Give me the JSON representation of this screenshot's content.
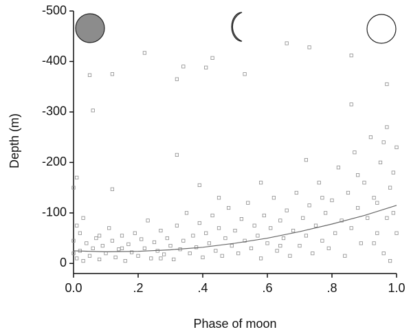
{
  "chart_data": {
    "type": "scatter",
    "x_label": "Phase of moon",
    "y_label": "Depth (m)",
    "xlim": [
      0,
      1
    ],
    "xticks": [
      {
        "value": 0,
        "label": "0.0"
      },
      {
        "value": 0.2,
        "label": ".2"
      },
      {
        "value": 0.4,
        "label": ".4"
      },
      {
        "value": 0.6,
        "label": ".6"
      },
      {
        "value": 0.8,
        "label": ".8"
      },
      {
        "value": 1,
        "label": "1.0"
      }
    ],
    "ylim": [
      20,
      -500
    ],
    "yticks": [
      0,
      -100,
      -200,
      -300,
      -400,
      -500
    ],
    "color": "#8a8a8a",
    "x": [
      0.05,
      0.06,
      0.12,
      0.22,
      0.32,
      0.34,
      0.32,
      0.41,
      0.43,
      0.53,
      0.12,
      0.66,
      0.73,
      0.86,
      0.86,
      0.97,
      0.72,
      0.39,
      0.01,
      0.0,
      0.01,
      0.02,
      0.03,
      0.04,
      0.02,
      0.05,
      0.06,
      0.07,
      0.08,
      0.09,
      0.1,
      0.11,
      0.12,
      0.13,
      0.14,
      0.15,
      0.16,
      0.17,
      0.18,
      0.19,
      0.2,
      0.21,
      0.22,
      0.23,
      0.24,
      0.25,
      0.26,
      0.27,
      0.28,
      0.29,
      0.3,
      0.31,
      0.32,
      0.33,
      0.34,
      0.35,
      0.36,
      0.37,
      0.38,
      0.39,
      0.4,
      0.41,
      0.42,
      0.43,
      0.44,
      0.45,
      0.46,
      0.47,
      0.48,
      0.49,
      0.5,
      0.51,
      0.52,
      0.53,
      0.54,
      0.55,
      0.56,
      0.57,
      0.58,
      0.59,
      0.6,
      0.61,
      0.62,
      0.63,
      0.64,
      0.65,
      0.66,
      0.67,
      0.68,
      0.69,
      0.7,
      0.71,
      0.72,
      0.73,
      0.74,
      0.75,
      0.76,
      0.77,
      0.78,
      0.79,
      0.8,
      0.81,
      0.82,
      0.83,
      0.84,
      0.85,
      0.86,
      0.87,
      0.88,
      0.89,
      0.9,
      0.91,
      0.92,
      0.93,
      0.94,
      0.95,
      0.96,
      0.97,
      0.98,
      0.99,
      1.0,
      1.0,
      0.99,
      0.98,
      0.96,
      0.94,
      0.03,
      0.0,
      0.0,
      0.01,
      0.08,
      0.15,
      0.27,
      0.45,
      0.58,
      0.64,
      0.77,
      0.88,
      0.93,
      0.97
    ],
    "values": [
      -373,
      -303,
      -375,
      -417,
      -365,
      -390,
      -215,
      -388,
      -407,
      -375,
      -147,
      -436,
      -428,
      -412,
      -315,
      -355,
      -205,
      -155,
      -170,
      -150,
      -10,
      -25,
      -5,
      -40,
      -60,
      -15,
      -30,
      -50,
      -8,
      -35,
      -20,
      -70,
      -45,
      -12,
      -28,
      -55,
      -5,
      -38,
      -22,
      -60,
      -15,
      -48,
      -30,
      -85,
      -10,
      -42,
      -25,
      -65,
      -18,
      -50,
      -35,
      -8,
      -75,
      -28,
      -45,
      -100,
      -20,
      -55,
      -32,
      -80,
      -12,
      -60,
      -40,
      -95,
      -25,
      -70,
      -15,
      -50,
      -110,
      -35,
      -65,
      -20,
      -88,
      -45,
      -120,
      -30,
      -75,
      -55,
      -10,
      -95,
      -40,
      -70,
      -130,
      -25,
      -85,
      -50,
      -105,
      -15,
      -65,
      -140,
      -35,
      -90,
      -55,
      -115,
      -20,
      -75,
      -160,
      -45,
      -100,
      -30,
      -125,
      -60,
      -190,
      -85,
      -15,
      -140,
      -70,
      -220,
      -110,
      -40,
      -160,
      -90,
      -250,
      -130,
      -60,
      -200,
      -20,
      -270,
      -150,
      -100,
      -230,
      -60,
      -180,
      -5,
      -240,
      -120,
      -90,
      -45,
      -20,
      -75,
      -55,
      -30,
      -10,
      -130,
      -160,
      -35,
      -130,
      -175,
      -40,
      -90
    ],
    "trend": {
      "color": "#666666",
      "x": [
        0,
        0.1,
        0.2,
        0.3,
        0.4,
        0.5,
        0.6,
        0.7,
        0.8,
        0.9,
        1.0
      ],
      "values": [
        -25,
        -23,
        -24,
        -27,
        -32,
        -40,
        -50,
        -63,
        -78,
        -95,
        -115
      ]
    }
  }
}
